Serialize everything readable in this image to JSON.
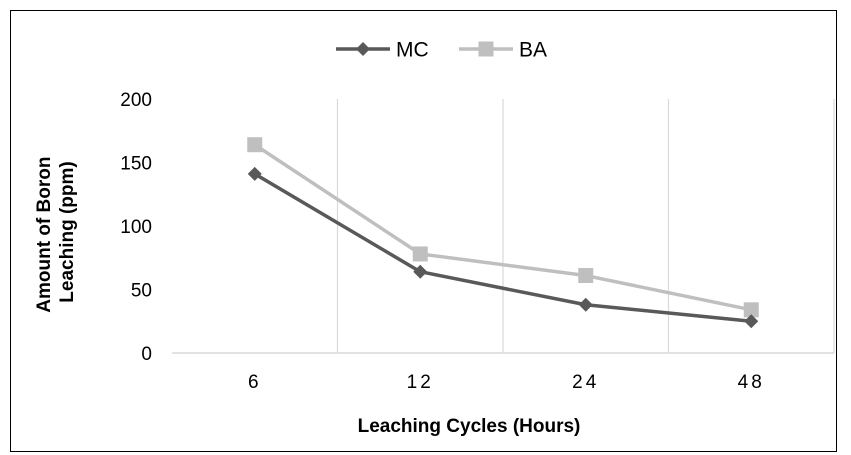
{
  "chart_data": {
    "type": "line",
    "categories": [
      "6",
      "12",
      "24",
      "48"
    ],
    "series": [
      {
        "name": "MC",
        "values": [
          141,
          64,
          38,
          25
        ],
        "color": "#595959",
        "marker": "diamond"
      },
      {
        "name": "BA",
        "values": [
          164,
          78,
          61,
          34
        ],
        "color": "#BFBFBF",
        "marker": "square"
      }
    ],
    "title": "",
    "xlabel": "Leaching Cycles (Hours)",
    "ylabel_lines": [
      "Amount of Boron",
      "Leaching (ppm)"
    ],
    "ylim": [
      0,
      200
    ],
    "yticks": [
      0,
      50,
      100,
      150,
      200
    ],
    "grid": "vertical",
    "legend_position": "top"
  }
}
